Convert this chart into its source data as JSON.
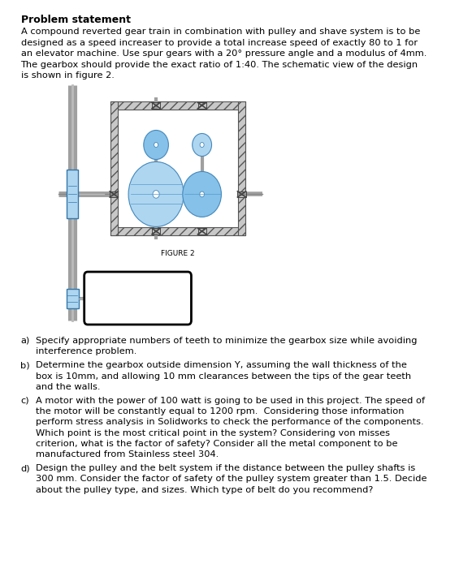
{
  "title": "Problem statement",
  "intro_text": "A compound reverted gear train in combination with pulley and shave system is to be\ndesigned as a speed increaser to provide a total increase speed of exactly 80 to 1 for\nan elevator machine. Use spur gears with a 20° pressure angle and a modulus of 4mm.\nThe gearbox should provide the exact ratio of 1:40. The schematic view of the design\nis shown in figure 2.",
  "figure_caption": "FIGURE 2",
  "questions": [
    {
      "label": "a)",
      "text": "Specify appropriate numbers of teeth to minimize the gearbox size while avoiding\ninterference problem."
    },
    {
      "label": "b)",
      "text": "Determine the gearbox outside dimension Y, assuming the wall thickness of the\nbox is 10mm, and allowing 10 mm clearances between the tips of the gear teeth\nand the walls."
    },
    {
      "label": "c)",
      "text": "A motor with the power of 100 watt is going to be used in this project. The speed of\nthe motor will be constantly equal to 1200 rpm.  Considering those information\nperform stress analysis in Solidworks to check the performance of the components.\nWhich point is the most critical point in the system? Considering von misses\ncriterion, what is the factor of safety? Consider all the metal component to be\nmanufactured from Stainless steel 304."
    },
    {
      "label": "d)",
      "text": "Design the pulley and the belt system if the distance between the pulley shafts is\n300 mm. Consider the factor of safety of the pulley system greater than 1.5. Decide\nabout the pulley type, and sizes. Which type of belt do you recommend?"
    }
  ],
  "bg_color": "#ffffff",
  "text_color": "#000000",
  "gear_color_light": "#aed6f1",
  "gear_color_mid": "#85c1e9",
  "shaft_color": "#a0a0a0",
  "box_wall_color": "#c0c0c0",
  "hatch_color": "#909090",
  "motor_box_color": "#ffffff",
  "motor_border_color": "#000000"
}
